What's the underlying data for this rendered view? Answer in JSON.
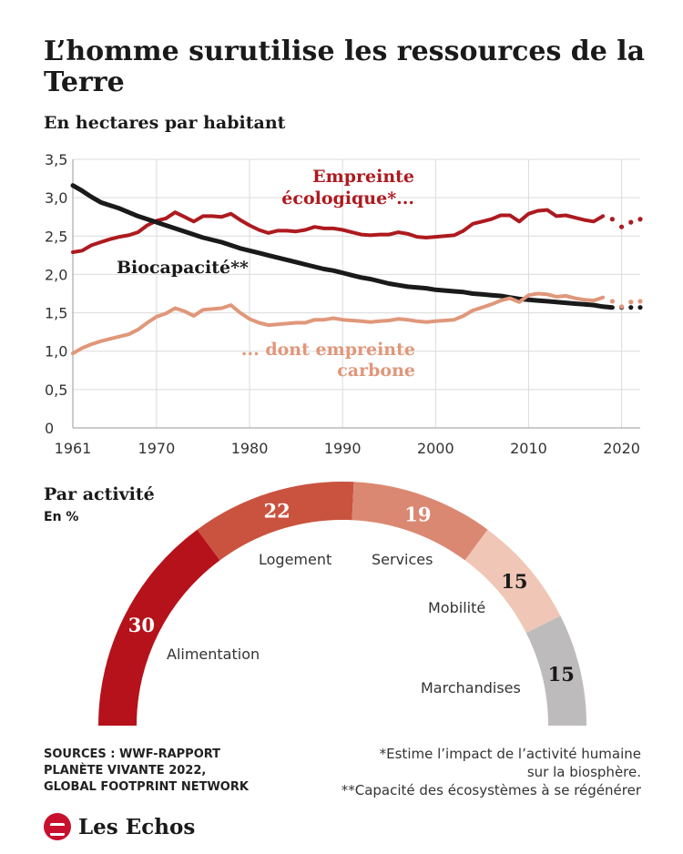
{
  "header": {
    "title": "L’homme surutilise les ressources de la Terre",
    "subtitle": "En hectares par habitant"
  },
  "colors": {
    "empreinte": "#ad1a1f",
    "biocapacite": "#1a1a1a",
    "carbone": "#e0977a",
    "grid": "#dcdcdc"
  },
  "chart_data": [
    {
      "type": "line",
      "title": "En hectares par habitant",
      "xlabel": "",
      "ylabel": "",
      "xlim": [
        1961,
        2022
      ],
      "ylim": [
        0,
        3.5
      ],
      "grid": true,
      "x_ticks": [
        "1961",
        "1970",
        "1980",
        "1990",
        "2000",
        "2010",
        "2020"
      ],
      "y_ticks": [
        "0",
        "0,5",
        "1,0",
        "1,5",
        "2,0",
        "2,5",
        "3,0",
        "3,5"
      ],
      "series": [
        {
          "name": "Empreinte écologique*...",
          "label_lines": [
            "Empreinte",
            "écologique*..."
          ],
          "color": "#ad1a1f",
          "x": [
            1961,
            1962,
            1963,
            1964,
            1965,
            1966,
            1967,
            1968,
            1969,
            1970,
            1971,
            1972,
            1973,
            1974,
            1975,
            1976,
            1977,
            1978,
            1979,
            1980,
            1981,
            1982,
            1983,
            1984,
            1985,
            1986,
            1987,
            1988,
            1989,
            1990,
            1991,
            1992,
            1993,
            1994,
            1995,
            1996,
            1997,
            1998,
            1999,
            2000,
            2001,
            2002,
            2003,
            2004,
            2005,
            2006,
            2007,
            2008,
            2009,
            2010,
            2011,
            2012,
            2013,
            2014,
            2015,
            2016,
            2017,
            2018
          ],
          "y": [
            2.29,
            2.31,
            2.38,
            2.42,
            2.46,
            2.49,
            2.51,
            2.55,
            2.64,
            2.7,
            2.73,
            2.81,
            2.75,
            2.69,
            2.76,
            2.76,
            2.75,
            2.79,
            2.71,
            2.64,
            2.58,
            2.54,
            2.57,
            2.57,
            2.56,
            2.58,
            2.62,
            2.6,
            2.6,
            2.58,
            2.55,
            2.52,
            2.51,
            2.52,
            2.52,
            2.55,
            2.53,
            2.49,
            2.48,
            2.49,
            2.5,
            2.51,
            2.57,
            2.66,
            2.69,
            2.72,
            2.77,
            2.77,
            2.69,
            2.79,
            2.83,
            2.84,
            2.76,
            2.77,
            2.74,
            2.71,
            2.69,
            2.76
          ],
          "projection_x": [
            2019,
            2020,
            2021,
            2022
          ],
          "projection_y": [
            2.72,
            2.62,
            2.68,
            2.72
          ]
        },
        {
          "name": "Biocapacité**",
          "label_lines": [
            "Biocapacité**"
          ],
          "color": "#1a1a1a",
          "x": [
            1961,
            1962,
            1963,
            1964,
            1965,
            1966,
            1967,
            1968,
            1969,
            1970,
            1971,
            1972,
            1973,
            1974,
            1975,
            1976,
            1977,
            1978,
            1979,
            1980,
            1981,
            1982,
            1983,
            1984,
            1985,
            1986,
            1987,
            1988,
            1989,
            1990,
            1991,
            1992,
            1993,
            1994,
            1995,
            1996,
            1997,
            1998,
            1999,
            2000,
            2001,
            2002,
            2003,
            2004,
            2005,
            2006,
            2007,
            2008,
            2009,
            2010,
            2011,
            2012,
            2013,
            2014,
            2015,
            2016,
            2017,
            2018,
            2019
          ],
          "y": [
            3.16,
            3.09,
            3.01,
            2.94,
            2.9,
            2.86,
            2.81,
            2.76,
            2.72,
            2.68,
            2.64,
            2.6,
            2.56,
            2.52,
            2.48,
            2.45,
            2.42,
            2.38,
            2.34,
            2.31,
            2.28,
            2.25,
            2.22,
            2.19,
            2.16,
            2.13,
            2.1,
            2.07,
            2.05,
            2.02,
            1.99,
            1.96,
            1.94,
            1.91,
            1.88,
            1.86,
            1.84,
            1.83,
            1.82,
            1.8,
            1.79,
            1.78,
            1.77,
            1.75,
            1.74,
            1.73,
            1.72,
            1.7,
            1.68,
            1.67,
            1.66,
            1.65,
            1.64,
            1.63,
            1.62,
            1.61,
            1.6,
            1.58,
            1.57
          ],
          "projection_x": [
            2020,
            2021,
            2022
          ],
          "projection_y": [
            1.57,
            1.57,
            1.57
          ]
        },
        {
          "name": "... dont empreinte carbone",
          "label_lines": [
            "... dont empreinte",
            "carbone"
          ],
          "color": "#e0977a",
          "x": [
            1961,
            1962,
            1963,
            1964,
            1965,
            1966,
            1967,
            1968,
            1969,
            1970,
            1971,
            1972,
            1973,
            1974,
            1975,
            1976,
            1977,
            1978,
            1979,
            1980,
            1981,
            1982,
            1983,
            1984,
            1985,
            1986,
            1987,
            1988,
            1989,
            1990,
            1991,
            1992,
            1993,
            1994,
            1995,
            1996,
            1997,
            1998,
            1999,
            2000,
            2001,
            2002,
            2003,
            2004,
            2005,
            2006,
            2007,
            2008,
            2009,
            2010,
            2011,
            2012,
            2013,
            2014,
            2015,
            2016,
            2017,
            2018
          ],
          "y": [
            0.97,
            1.04,
            1.09,
            1.13,
            1.16,
            1.19,
            1.22,
            1.28,
            1.37,
            1.45,
            1.49,
            1.56,
            1.52,
            1.46,
            1.54,
            1.55,
            1.56,
            1.6,
            1.5,
            1.42,
            1.37,
            1.34,
            1.35,
            1.36,
            1.37,
            1.37,
            1.41,
            1.41,
            1.43,
            1.41,
            1.4,
            1.39,
            1.38,
            1.39,
            1.4,
            1.42,
            1.41,
            1.39,
            1.38,
            1.39,
            1.4,
            1.41,
            1.46,
            1.53,
            1.57,
            1.61,
            1.66,
            1.69,
            1.64,
            1.73,
            1.75,
            1.74,
            1.71,
            1.72,
            1.69,
            1.67,
            1.66,
            1.7
          ],
          "projection_x": [
            2019,
            2020,
            2021,
            2022
          ],
          "projection_y": [
            1.65,
            1.58,
            1.64,
            1.65
          ]
        }
      ]
    },
    {
      "type": "pie",
      "title": "Par activité",
      "subtitle": "En %",
      "layout": "semicircle-donut",
      "categories": [
        "Alimentation",
        "Logement",
        "Services",
        "Mobilité",
        "Marchandises"
      ],
      "values": [
        30,
        22,
        19,
        15,
        15
      ],
      "value_labels": [
        "30",
        "22",
        "19",
        "15",
        "15"
      ],
      "colors": [
        "#b5121b",
        "#c9533f",
        "#db8872",
        "#f0c7b6",
        "#bdbbbc"
      ],
      "value_text_colors": [
        "#ffffff",
        "#ffffff",
        "#ffffff",
        "#1a1a1a",
        "#1a1a1a"
      ]
    }
  ],
  "footer": {
    "sources": [
      "SOURCES : WWF-RAPPORT",
      "PLANÈTE VIVANTE 2022,",
      "GLOBAL FOOTPRINT NETWORK"
    ],
    "notes": [
      "*Estime l’impact de l’activité humaine",
      "sur la biosphère.",
      "**Capacité des écosystèmes à se régénérer"
    ],
    "brand": "Les Echos",
    "brand_icon": "lesechos-logo-icon"
  }
}
